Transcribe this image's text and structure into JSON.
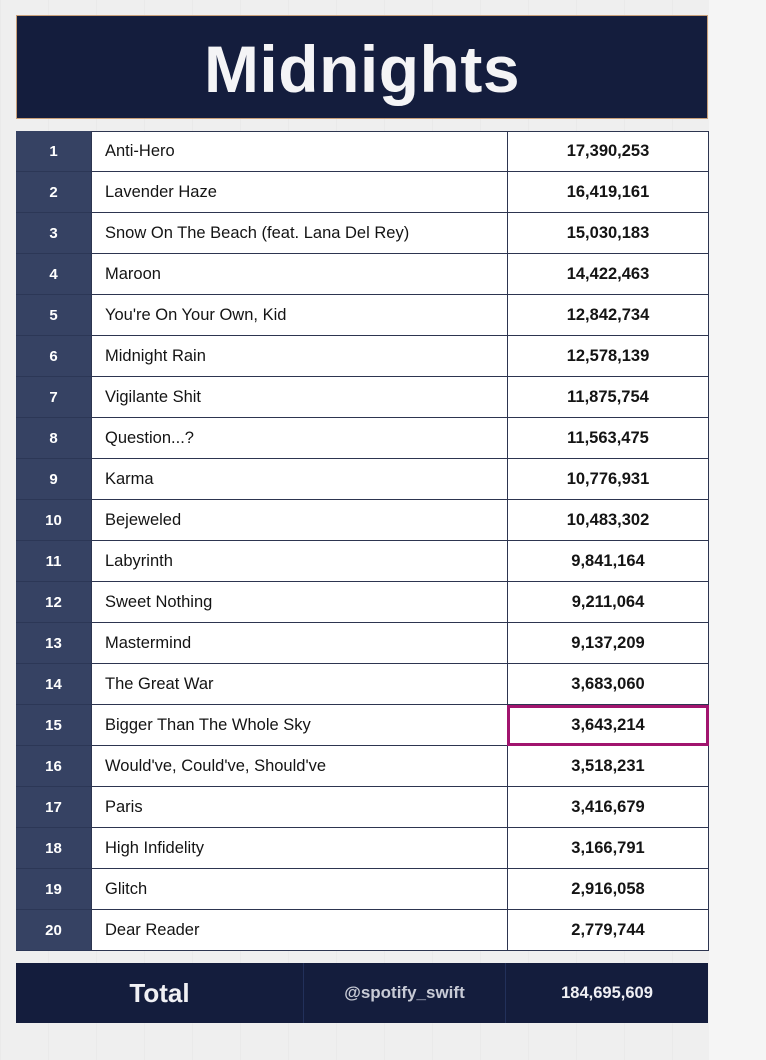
{
  "title": "Midnights",
  "tracks": [
    {
      "rank": "1",
      "song": "Anti-Hero",
      "streams": "17,390,253"
    },
    {
      "rank": "2",
      "song": "Lavender Haze",
      "streams": "16,419,161"
    },
    {
      "rank": "3",
      "song": "Snow On The Beach (feat. Lana Del Rey)",
      "streams": "15,030,183"
    },
    {
      "rank": "4",
      "song": "Maroon",
      "streams": "14,422,463"
    },
    {
      "rank": "5",
      "song": "You're On Your Own, Kid",
      "streams": "12,842,734"
    },
    {
      "rank": "6",
      "song": "Midnight Rain",
      "streams": "12,578,139"
    },
    {
      "rank": "7",
      "song": "Vigilante Shit",
      "streams": "11,875,754"
    },
    {
      "rank": "8",
      "song": "Question...?",
      "streams": "11,563,475"
    },
    {
      "rank": "9",
      "song": "Karma",
      "streams": "10,776,931"
    },
    {
      "rank": "10",
      "song": "Bejeweled",
      "streams": "10,483,302"
    },
    {
      "rank": "11",
      "song": "Labyrinth",
      "streams": "9,841,164"
    },
    {
      "rank": "12",
      "song": "Sweet Nothing",
      "streams": "9,211,064"
    },
    {
      "rank": "13",
      "song": "Mastermind",
      "streams": "9,137,209"
    },
    {
      "rank": "14",
      "song": "The Great War",
      "streams": "3,683,060"
    },
    {
      "rank": "15",
      "song": "Bigger Than The Whole Sky",
      "streams": "3,643,214"
    },
    {
      "rank": "16",
      "song": "Would've, Could've, Should've",
      "streams": "3,518,231"
    },
    {
      "rank": "17",
      "song": "Paris",
      "streams": "3,416,679"
    },
    {
      "rank": "18",
      "song": "High Infidelity",
      "streams": "3,166,791"
    },
    {
      "rank": "19",
      "song": "Glitch",
      "streams": "2,916,058"
    },
    {
      "rank": "20",
      "song": "Dear Reader",
      "streams": "2,779,744"
    }
  ],
  "highlighted_rank": "15",
  "highlight_color": "#a1146e",
  "footer": {
    "total_label": "Total",
    "handle": "@spotify_swift",
    "total_streams": "184,695,609"
  },
  "colors": {
    "banner": "#141d3d",
    "rank_column": "#364263"
  }
}
